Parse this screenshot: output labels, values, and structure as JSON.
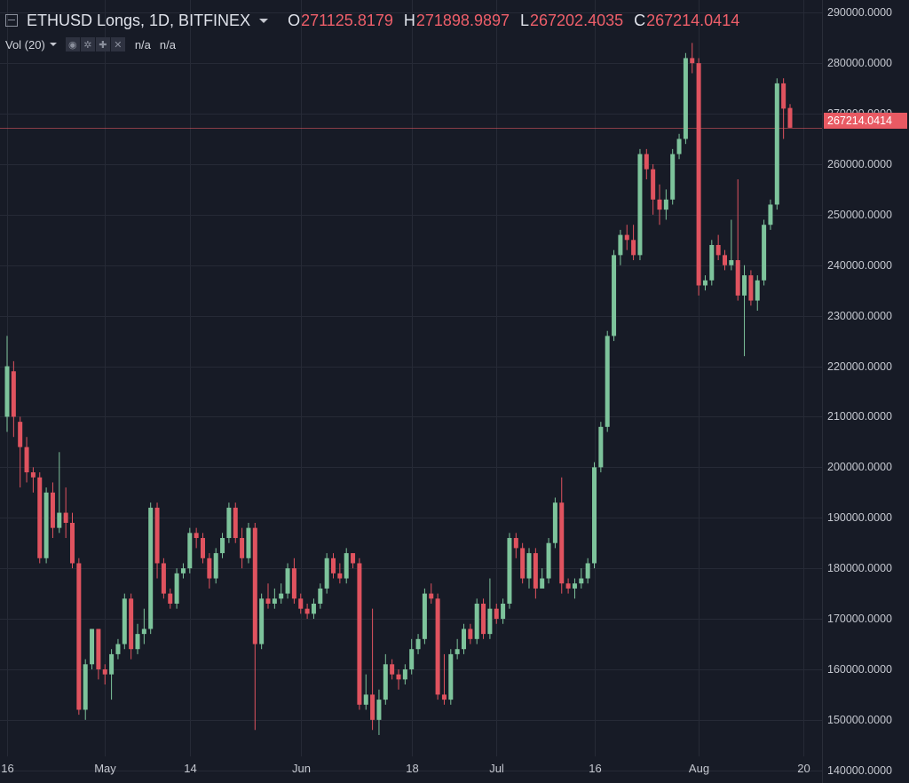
{
  "legend": {
    "symbol": "ETHUSD Longs, 1D, BITFINEX",
    "open_key": "O",
    "open": "271125.8179",
    "high_key": "H",
    "high": "271898.9897",
    "low_key": "L",
    "low": "267202.4035",
    "close_key": "C",
    "close": "267214.0414"
  },
  "volume": {
    "label": "Vol (20)",
    "value1": "n/a",
    "value2": "n/a"
  },
  "colors": {
    "background": "#171b26",
    "up": "#7dc39b",
    "down": "#e0535f",
    "grid": "#262a36",
    "last_price": "#e85a63"
  },
  "last_price_label": "267214.0414",
  "chart_data": {
    "type": "candlestick",
    "y_range": [
      137500,
      292500
    ],
    "y_ticks": [
      {
        "value": 290000,
        "label": "290000.0000"
      },
      {
        "value": 280000,
        "label": "280000.0000"
      },
      {
        "value": 270000,
        "label": "270000.0000"
      },
      {
        "value": 260000,
        "label": "260000.0000"
      },
      {
        "value": 250000,
        "label": "250000.0000"
      },
      {
        "value": 240000,
        "label": "240000.0000"
      },
      {
        "value": 230000,
        "label": "230000.0000"
      },
      {
        "value": 220000,
        "label": "220000.0000"
      },
      {
        "value": 210000,
        "label": "210000.0000"
      },
      {
        "value": 200000,
        "label": "200000.0000"
      },
      {
        "value": 190000,
        "label": "190000.0000"
      },
      {
        "value": 180000,
        "label": "180000.0000"
      },
      {
        "value": 170000,
        "label": "170000.0000"
      },
      {
        "value": 160000,
        "label": "160000.0000"
      },
      {
        "value": 150000,
        "label": "150000.0000"
      },
      {
        "value": 140000,
        "label": "140000.0000"
      }
    ],
    "x_ticks": [
      {
        "index": 0,
        "label": "16"
      },
      {
        "index": 15,
        "label": "May"
      },
      {
        "index": 28,
        "label": "14"
      },
      {
        "index": 45,
        "label": "Jun"
      },
      {
        "index": 62,
        "label": "18"
      },
      {
        "index": 75,
        "label": "Jul"
      },
      {
        "index": 90,
        "label": "16"
      },
      {
        "index": 106,
        "label": "Aug"
      },
      {
        "index": 122,
        "label": "20"
      }
    ],
    "last_price": 267214.0414,
    "candles": [
      [
        210000,
        220000,
        226000,
        207000
      ],
      [
        219000,
        210000,
        221000,
        206000
      ],
      [
        209000,
        204000,
        210000,
        196000
      ],
      [
        204000,
        199000,
        206000,
        197000
      ],
      [
        199000,
        198000,
        200000,
        195000
      ],
      [
        198000,
        182000,
        199000,
        181000
      ],
      [
        182000,
        195000,
        196000,
        181000
      ],
      [
        195000,
        188000,
        197000,
        186000
      ],
      [
        188000,
        191000,
        203000,
        187000
      ],
      [
        191000,
        189000,
        196000,
        186000
      ],
      [
        189000,
        181000,
        191000,
        180000
      ],
      [
        181000,
        152000,
        182000,
        151000
      ],
      [
        152000,
        161000,
        162000,
        150000
      ],
      [
        161000,
        168000,
        168000,
        160000
      ],
      [
        168000,
        160000,
        168000,
        158000
      ],
      [
        160000,
        159000,
        161000,
        157000
      ],
      [
        159000,
        163000,
        164000,
        154000
      ],
      [
        163000,
        165000,
        166000,
        162000
      ],
      [
        165000,
        174000,
        175000,
        164000
      ],
      [
        174000,
        164000,
        175000,
        162000
      ],
      [
        164000,
        167000,
        169000,
        163000
      ],
      [
        167000,
        168000,
        172000,
        165000
      ],
      [
        168000,
        192000,
        193000,
        167000
      ],
      [
        192000,
        181000,
        193000,
        178000
      ],
      [
        181000,
        175000,
        182000,
        174000
      ],
      [
        175000,
        173000,
        176000,
        172000
      ],
      [
        173000,
        179000,
        180000,
        172000
      ],
      [
        179000,
        180000,
        181000,
        178000
      ],
      [
        180000,
        187000,
        188000,
        179000
      ],
      [
        187000,
        186000,
        188000,
        184000
      ],
      [
        186000,
        182000,
        187000,
        181000
      ],
      [
        182000,
        178000,
        183000,
        176000
      ],
      [
        178000,
        183000,
        184000,
        177000
      ],
      [
        183000,
        186000,
        187000,
        182000
      ],
      [
        186000,
        192000,
        193000,
        185000
      ],
      [
        192000,
        186000,
        193000,
        185000
      ],
      [
        186000,
        182000,
        188000,
        180000
      ],
      [
        182000,
        188000,
        189000,
        181000
      ],
      [
        188000,
        165000,
        189000,
        148000
      ],
      [
        165000,
        174000,
        175000,
        164000
      ],
      [
        174000,
        173000,
        177000,
        172000
      ],
      [
        173000,
        174000,
        176000,
        172000
      ],
      [
        174000,
        175000,
        177000,
        173000
      ],
      [
        175000,
        180000,
        181000,
        174000
      ],
      [
        180000,
        174000,
        182000,
        173000
      ],
      [
        174000,
        172000,
        175000,
        171000
      ],
      [
        172000,
        171000,
        173000,
        170000
      ],
      [
        171000,
        173000,
        174000,
        170000
      ],
      [
        173000,
        176000,
        177000,
        172000
      ],
      [
        176000,
        182000,
        183000,
        175000
      ],
      [
        182000,
        179000,
        183000,
        178000
      ],
      [
        179000,
        178000,
        181000,
        177000
      ],
      [
        178000,
        183000,
        184000,
        177000
      ],
      [
        183000,
        181000,
        183000,
        180000
      ],
      [
        181000,
        153000,
        182000,
        152000
      ],
      [
        153000,
        155000,
        159000,
        152000
      ],
      [
        155000,
        150000,
        172000,
        148000
      ],
      [
        150000,
        154000,
        156000,
        147000
      ],
      [
        154000,
        161000,
        163000,
        153000
      ],
      [
        161000,
        159000,
        162000,
        158000
      ],
      [
        159000,
        158000,
        160000,
        156000
      ],
      [
        158000,
        160000,
        161000,
        157000
      ],
      [
        160000,
        164000,
        166000,
        159000
      ],
      [
        164000,
        166000,
        167000,
        163000
      ],
      [
        166000,
        175000,
        176000,
        165000
      ],
      [
        175000,
        174000,
        177000,
        173000
      ],
      [
        174000,
        155000,
        175000,
        154000
      ],
      [
        155000,
        154000,
        163000,
        153000
      ],
      [
        154000,
        163000,
        164000,
        153000
      ],
      [
        163000,
        164000,
        166000,
        162000
      ],
      [
        164000,
        168000,
        169000,
        163000
      ],
      [
        168000,
        166000,
        169000,
        165000
      ],
      [
        166000,
        173000,
        174000,
        165000
      ],
      [
        173000,
        167000,
        174000,
        166000
      ],
      [
        167000,
        172000,
        178000,
        166000
      ],
      [
        172000,
        170000,
        173000,
        169000
      ],
      [
        170000,
        173000,
        174000,
        169000
      ],
      [
        173000,
        186000,
        187000,
        172000
      ],
      [
        186000,
        184000,
        187000,
        182000
      ],
      [
        184000,
        178000,
        185000,
        177000
      ],
      [
        178000,
        183000,
        184000,
        176000
      ],
      [
        183000,
        176000,
        184000,
        174000
      ],
      [
        176000,
        178000,
        180000,
        177000
      ],
      [
        178000,
        185000,
        186000,
        177000
      ],
      [
        185000,
        193000,
        194000,
        184000
      ],
      [
        193000,
        177000,
        198000,
        175000
      ],
      [
        177000,
        176000,
        178000,
        175000
      ],
      [
        176000,
        177000,
        178000,
        174000
      ],
      [
        177000,
        178000,
        180000,
        176000
      ],
      [
        178000,
        181000,
        182000,
        177000
      ],
      [
        181000,
        200000,
        201000,
        180000
      ],
      [
        200000,
        208000,
        209000,
        199000
      ],
      [
        208000,
        226000,
        227000,
        207000
      ],
      [
        226000,
        242000,
        243000,
        225000
      ],
      [
        242000,
        246000,
        247000,
        240000
      ],
      [
        246000,
        245000,
        248000,
        243000
      ],
      [
        245000,
        242000,
        248000,
        241000
      ],
      [
        242000,
        262000,
        263000,
        241000
      ],
      [
        262000,
        259000,
        263000,
        257000
      ],
      [
        259000,
        253000,
        260000,
        250000
      ],
      [
        253000,
        251000,
        256000,
        248000
      ],
      [
        251000,
        253000,
        255000,
        249000
      ],
      [
        253000,
        262000,
        263000,
        252000
      ],
      [
        262000,
        265000,
        266000,
        261000
      ],
      [
        265000,
        281000,
        282000,
        264000
      ],
      [
        281000,
        280000,
        284000,
        278000
      ],
      [
        280000,
        236000,
        281000,
        234000
      ],
      [
        236000,
        237000,
        238000,
        235000
      ],
      [
        237000,
        244000,
        245000,
        236000
      ],
      [
        244000,
        242000,
        246000,
        241000
      ],
      [
        242000,
        240000,
        243000,
        239000
      ],
      [
        240000,
        241000,
        249000,
        239000
      ],
      [
        241000,
        234000,
        257000,
        233000
      ],
      [
        234000,
        238000,
        240000,
        222000
      ],
      [
        238000,
        233000,
        239000,
        232000
      ],
      [
        233000,
        237000,
        238000,
        231000
      ],
      [
        237000,
        248000,
        249000,
        236000
      ],
      [
        248000,
        252000,
        253000,
        247000
      ],
      [
        252000,
        276000,
        277000,
        251000
      ],
      [
        276000,
        271000,
        277000,
        265000
      ],
      [
        271125.8179,
        267214.0414,
        271898.9897,
        267202.4035
      ]
    ]
  }
}
